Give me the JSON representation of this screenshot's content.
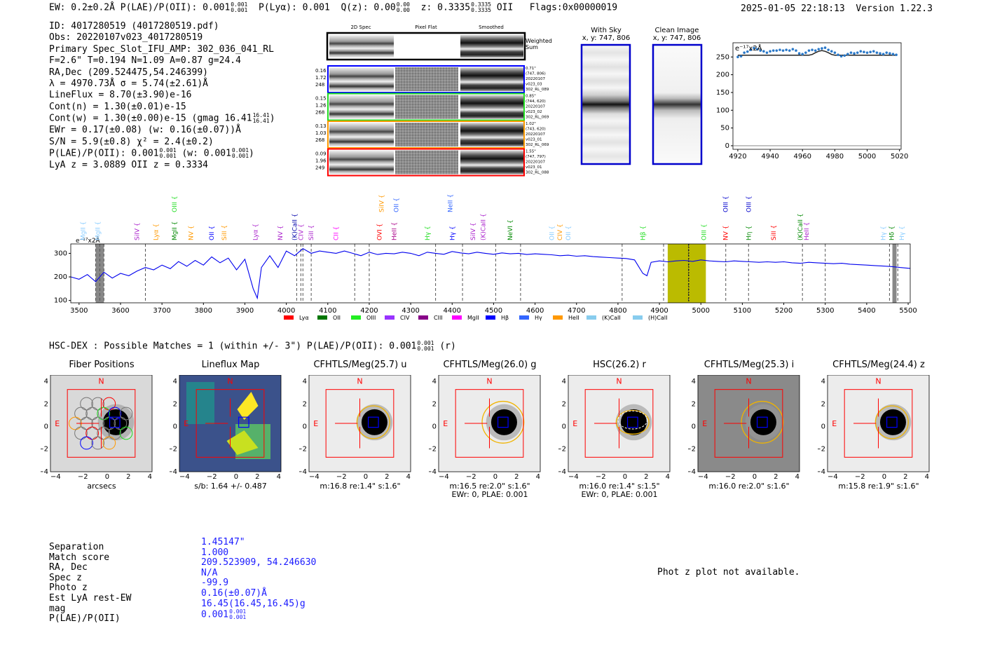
{
  "header": {
    "left": "EW: 0.2±0.2Å  P(LAE)/P(OII): 0.001",
    "plae_sup": "0.001",
    "plae_sub": "0.001",
    "plya": "P(Lyα): 0.001",
    "qz": "Q(z): 0.00",
    "qz_sup": "0.00",
    "qz_sub": "0.00",
    "z": "z: 0.3335",
    "z_sup": "0.3335",
    "z_sub": "0.3335",
    "z_line": "OII",
    "flags": "Flags:0x00000019",
    "timestamp": "2025-01-05 22:18:13",
    "version": "Version 1.22.3"
  },
  "info": {
    "lines": [
      "ID: 4017280519 (4017280519.pdf)",
      "Obs: 20220107v023_4017280519",
      "Primary Spec_Slot_IFU_AMP: 302_036_041_RL",
      "F=2.6\"  T=0.194  N=1.09  A=0.87  g=24.4",
      "RA,Dec (209.524475,54.246399)",
      "λ = 4970.73Å  σ = 5.74(±2.61)Å",
      "LineFlux = 8.70(±3.90)e-16",
      "Cont(n) = 1.30(±0.01)e-15",
      "Cont(w) = 1.30(±0.00)e-15 (gmag 16.41",
      "EWr = 0.17(±0.08) (w: 0.16(±0.07))Å",
      "S/N = 5.9(±0.8)  χ² = 2.4(±0.2)",
      "P(LAE)/P(OII): 0.001",
      "LyA z = 3.0889  OII z = 0.3334"
    ],
    "gmag_sup": "16.41",
    "gmag_sub": "16.41",
    "plae_w": "(w: 0.001",
    "plae_a_sup": "0.001",
    "plae_a_sub": "0.001",
    "plae_b_sup": "0.001",
    "plae_b_sub": "0.001"
  },
  "cutouts": {
    "col_2d": "2D Spec",
    "col_flat": "Pixel Flat",
    "col_smooth": "Smoothed",
    "weighted": "Weighted",
    "weighted2": "Sum",
    "fibers": [
      {
        "a": "0.16",
        "b": "1.72",
        "c": "248",
        "r1": "0.71\"",
        "r2": "(747, 806)",
        "r3": "20220107",
        "r4": "v023_03",
        "r5": "302_RL_089",
        "color": "#0000ff"
      },
      {
        "a": "0.15",
        "b": "1.26",
        "c": "268",
        "r1": "0.85\"",
        "r2": "(744, 620)",
        "r3": "20220107",
        "r4": "v023_02",
        "r5": "302_RL_069",
        "color": "#22dd22"
      },
      {
        "a": "0.13",
        "b": "1.03",
        "c": "268",
        "r1": "1.02\"",
        "r2": "(743, 620)",
        "r3": "20220107",
        "r4": "v023_01",
        "r5": "302_RL_069",
        "color": "#ff9900"
      },
      {
        "a": "0.09",
        "b": "1.96",
        "c": "249",
        "r1": "1.55\"",
        "r2": "(747, 797)",
        "r3": "20220107",
        "r4": "v023_01",
        "r5": "302_RL_088",
        "color": "#ff0000"
      }
    ],
    "with_sky": "With Sky",
    "with_sky_xy": "x, y: 747, 806",
    "clean": "Clean Image",
    "clean_xy": "x, y: 747, 806"
  },
  "zoom_label": "e⁻¹⁷x2Å",
  "full_label": "e⁻¹⁷x2Å",
  "chart_data": [
    {
      "type": "line",
      "title": "zoomed spectrum",
      "x": [
        4920,
        4922,
        4924,
        4926,
        4928,
        4930,
        4932,
        4934,
        4936,
        4938,
        4940,
        4942,
        4944,
        4946,
        4948,
        4950,
        4952,
        4954,
        4956,
        4958,
        4960,
        4962,
        4964,
        4966,
        4968,
        4970,
        4972,
        4974,
        4976,
        4978,
        4980,
        4982,
        4984,
        4986,
        4988,
        4990,
        4992,
        4994,
        4996,
        4998,
        5000,
        5002,
        5004,
        5006,
        5008,
        5010,
        5012,
        5014,
        5016,
        5018
      ],
      "y": [
        250,
        252,
        262,
        265,
        270,
        275,
        272,
        268,
        266,
        262,
        266,
        268,
        268,
        270,
        268,
        270,
        268,
        272,
        268,
        260,
        258,
        262,
        268,
        270,
        268,
        272,
        274,
        276,
        270,
        266,
        262,
        256,
        252,
        254,
        258,
        262,
        260,
        262,
        266,
        264,
        262,
        264,
        266,
        262,
        260,
        258,
        262,
        260,
        258,
        256
      ],
      "fit_y": [
        255,
        255,
        255,
        255,
        255,
        255,
        255,
        255,
        255,
        255,
        255,
        255,
        255,
        255,
        255,
        255,
        255,
        255,
        255,
        255,
        255,
        255,
        255,
        257,
        262,
        266,
        268,
        266,
        262,
        257,
        255,
        255,
        255,
        255,
        255,
        255,
        255,
        255,
        255,
        255,
        255,
        255,
        255,
        255,
        255,
        255,
        255,
        255,
        255,
        255
      ],
      "xlim": [
        4917,
        5021
      ],
      "ylim": [
        -10,
        290
      ],
      "xticks": [
        4920,
        4940,
        4960,
        4980,
        5000,
        5020
      ],
      "yticks": [
        0,
        50,
        100,
        150,
        200,
        250
      ]
    },
    {
      "type": "line",
      "title": "full spectrum",
      "xlim": [
        3480,
        5505
      ],
      "ylim": [
        90,
        340
      ],
      "xticks": [
        3500,
        3600,
        3700,
        3800,
        3900,
        4000,
        4100,
        4200,
        4300,
        4400,
        4500,
        4600,
        4700,
        4800,
        4900,
        5000,
        5100,
        5200,
        5300,
        5400,
        5500
      ],
      "yticks": [
        100,
        200,
        300
      ],
      "x": [
        3480,
        3500,
        3520,
        3540,
        3560,
        3580,
        3600,
        3620,
        3640,
        3660,
        3680,
        3700,
        3720,
        3740,
        3760,
        3780,
        3800,
        3820,
        3840,
        3860,
        3880,
        3900,
        3920,
        3930,
        3940,
        3960,
        3980,
        4000,
        4020,
        4040,
        4060,
        4080,
        4100,
        4120,
        4140,
        4160,
        4180,
        4200,
        4220,
        4240,
        4260,
        4280,
        4300,
        4320,
        4340,
        4360,
        4380,
        4400,
        4420,
        4440,
        4460,
        4480,
        4500,
        4520,
        4540,
        4560,
        4580,
        4600,
        4620,
        4640,
        4660,
        4680,
        4700,
        4720,
        4740,
        4760,
        4780,
        4800,
        4820,
        4840,
        4860,
        4870,
        4880,
        4900,
        4920,
        4940,
        4960,
        4980,
        5000,
        5020,
        5040,
        5060,
        5080,
        5100,
        5120,
        5140,
        5160,
        5180,
        5200,
        5220,
        5240,
        5260,
        5280,
        5300,
        5320,
        5340,
        5360,
        5380,
        5400,
        5420,
        5440,
        5460,
        5480,
        5505
      ],
      "y": [
        200,
        190,
        210,
        180,
        220,
        195,
        215,
        205,
        225,
        240,
        230,
        250,
        235,
        265,
        245,
        270,
        250,
        285,
        260,
        280,
        230,
        275,
        150,
        110,
        240,
        290,
        240,
        310,
        290,
        320,
        300,
        310,
        305,
        300,
        310,
        300,
        290,
        305,
        295,
        300,
        298,
        305,
        300,
        290,
        305,
        300,
        296,
        308,
        302,
        298,
        305,
        300,
        296,
        302,
        298,
        300,
        295,
        298,
        296,
        294,
        290,
        292,
        288,
        290,
        286,
        284,
        282,
        280,
        278,
        272,
        215,
        205,
        262,
        268,
        264,
        268,
        270,
        266,
        272,
        268,
        266,
        264,
        268,
        266,
        264,
        262,
        264,
        262,
        264,
        260,
        258,
        262,
        260,
        258,
        256,
        258,
        254,
        252,
        250,
        248,
        246,
        244,
        240,
        236
      ],
      "highlight": [
        4920,
        5012
      ],
      "center": 4970.73,
      "gray_bands": [
        [
          3540,
          3560
        ],
        [
          5462,
          5472
        ]
      ],
      "dashed_lines": [
        3540,
        3550,
        3560,
        3660,
        4025,
        4035,
        4040,
        4060,
        4165,
        4200,
        4360,
        4425,
        4505,
        4565,
        4810,
        4910,
        4970,
        5060,
        5115,
        5245,
        5300,
        5455,
        5475
      ],
      "line_labels": [
        {
          "t": "MgII",
          "x": 3510,
          "c": "#88ccff",
          "h": 0
        },
        {
          "t": "MgII",
          "x": 3545,
          "c": "#88ccff",
          "h": 0
        },
        {
          "t": "SiIV",
          "x": 3640,
          "c": "#aa22cc",
          "h": 0
        },
        {
          "t": "Lyα",
          "x": 3685,
          "c": "#ff9900",
          "h": 0
        },
        {
          "t": "MgII",
          "x": 3730,
          "c": "#008800",
          "h": 0
        },
        {
          "t": "OIII",
          "x": 3730,
          "c": "#22dd22",
          "h": 1
        },
        {
          "t": "NV",
          "x": 3770,
          "c": "#ff9900",
          "h": 0
        },
        {
          "t": "OII",
          "x": 3820,
          "c": "#0000ff",
          "h": 0
        },
        {
          "t": "SiII",
          "x": 3850,
          "c": "#ff9900",
          "h": 0
        },
        {
          "t": "Lyα",
          "x": 3925,
          "c": "#aa22cc",
          "h": 0
        },
        {
          "t": "NV",
          "x": 3985,
          "c": "#aa22cc",
          "h": 0
        },
        {
          "t": "(K)CaII",
          "x": 4020,
          "c": "#0000aa",
          "h": 0
        },
        {
          "t": "CIV",
          "x": 4035,
          "c": "#aa22cc",
          "h": 0
        },
        {
          "t": "SiII",
          "x": 4060,
          "c": "#aa22cc",
          "h": 0
        },
        {
          "t": "CII",
          "x": 4120,
          "c": "#ff00ff",
          "h": 0
        },
        {
          "t": "OVI",
          "x": 4225,
          "c": "#ff0000",
          "h": 0
        },
        {
          "t": "SiIV",
          "x": 4230,
          "c": "#ff9900",
          "h": 1
        },
        {
          "t": "HeII",
          "x": 4260,
          "c": "#aa0088",
          "h": 0
        },
        {
          "t": "OII",
          "x": 4265,
          "c": "#3366ff",
          "h": 1
        },
        {
          "t": "Hγ",
          "x": 4340,
          "c": "#22dd22",
          "h": 0
        },
        {
          "t": "Hγ",
          "x": 4400,
          "c": "#0000ff",
          "h": 0
        },
        {
          "t": "NeII",
          "x": 4395,
          "c": "#3366ff",
          "h": 1
        },
        {
          "t": "SiIV",
          "x": 4450,
          "c": "#aa22cc",
          "h": 0
        },
        {
          "t": "(K)CaII",
          "x": 4475,
          "c": "#aa22cc",
          "h": 0
        },
        {
          "t": "NeVI",
          "x": 4540,
          "c": "#008800",
          "h": 0
        },
        {
          "t": "OII",
          "x": 4640,
          "c": "#88ccff",
          "h": 0
        },
        {
          "t": "CIV",
          "x": 4660,
          "c": "#ff9900",
          "h": 0
        },
        {
          "t": "OII",
          "x": 4680,
          "c": "#88ccff",
          "h": 0
        },
        {
          "t": "Hβ",
          "x": 4860,
          "c": "#22dd22",
          "h": 0
        },
        {
          "t": "OIII",
          "x": 5007,
          "c": "#22dd22",
          "h": 0
        },
        {
          "t": "NV",
          "x": 5060,
          "c": "#ff0000",
          "h": 0
        },
        {
          "t": "OIII",
          "x": 5060,
          "c": "#0000cc",
          "h": 1
        },
        {
          "t": "Hη",
          "x": 5115,
          "c": "#008800",
          "h": 0
        },
        {
          "t": "OIII",
          "x": 5115,
          "c": "#0000cc",
          "h": 1
        },
        {
          "t": "SiII",
          "x": 5175,
          "c": "#ff0000",
          "h": 0
        },
        {
          "t": "(K)CaII",
          "x": 5240,
          "c": "#008800",
          "h": 0
        },
        {
          "t": "HeII",
          "x": 5255,
          "c": "#aa22cc",
          "h": 0
        },
        {
          "t": "Hγ",
          "x": 5440,
          "c": "#88ccff",
          "h": 0
        },
        {
          "t": "Hδ",
          "x": 5460,
          "c": "#008800",
          "h": 0
        },
        {
          "t": "Hγ",
          "x": 5485,
          "c": "#88ccff",
          "h": 0
        }
      ],
      "legend": [
        {
          "t": "Lyα",
          "c": "#ff0000"
        },
        {
          "t": "OII",
          "c": "#007700"
        },
        {
          "t": "OIII",
          "c": "#22ee22"
        },
        {
          "t": "CIV",
          "c": "#9933ff"
        },
        {
          "t": "CIII",
          "c": "#880088"
        },
        {
          "t": "MgII",
          "c": "#ff00ff"
        },
        {
          "t": "Hβ",
          "c": "#0000ff"
        },
        {
          "t": "Hγ",
          "c": "#3366ff"
        },
        {
          "t": "HeII",
          "c": "#ff9900"
        },
        {
          "t": "(K)CaII",
          "c": "#88ccee"
        },
        {
          "t": "(H)CaII",
          "c": "#88ccee"
        }
      ]
    }
  ],
  "hsc": {
    "title": "HSC-DEX : Possible Matches = 1 (within +/- 3\")  P(LAE)/P(OII): 0.001",
    "plae_sup": "0.001",
    "plae_sub": "0.001",
    "band": "(r)",
    "panels": [
      {
        "title": "Fiber Positions",
        "cap1": "arcsecs",
        "cap2": ""
      },
      {
        "title": "Lineflux Map",
        "cap1": "s/b: 1.64 +/- 0.487",
        "cap2": ""
      },
      {
        "title": "CFHTLS/Meg(25.7) u",
        "cap1": "m:16.8  re:1.4\"  s:1.6\"",
        "cap2": ""
      },
      {
        "title": "CFHTLS/Meg(26.0) g",
        "cap1": "m:16.5  re:2.0\"  s:1.6\"",
        "cap2": "EWr: 0, PLAE: 0.001"
      },
      {
        "title": "HSC(26.2) r",
        "cap1": "m:16.0  re:1.4\"  s:1.5\"",
        "cap2": "EWr: 0, PLAE: 0.001"
      },
      {
        "title": "CFHTLS/Meg(25.3) i",
        "cap1": "m:16.0  re:2.0\"  s:1.6\"",
        "cap2": ""
      },
      {
        "title": "CFHTLS/Meg(24.4) z",
        "cap1": "m:15.8  re:1.9\"  s:1.6\"",
        "cap2": ""
      }
    ],
    "ticks": [
      "−4",
      "−2",
      "0",
      "2",
      "4"
    ],
    "north": "N",
    "east": "E"
  },
  "match": {
    "labels": [
      "Separation",
      "Match score",
      "RA, Dec",
      "Spec z",
      "Photo z",
      "Est LyA rest-EW",
      "mag",
      "P(LAE)/P(OII)"
    ],
    "values": [
      "1.45147\"",
      "1.000",
      "209.523909, 54.246630",
      "N/A",
      "-99.9",
      "0.16(±0.07)Å",
      "16.45(16.45,16.45)g",
      "0.001"
    ],
    "plae_sup": "0.001",
    "plae_sub": "0.001",
    "phot_z": "Phot z plot not available."
  }
}
